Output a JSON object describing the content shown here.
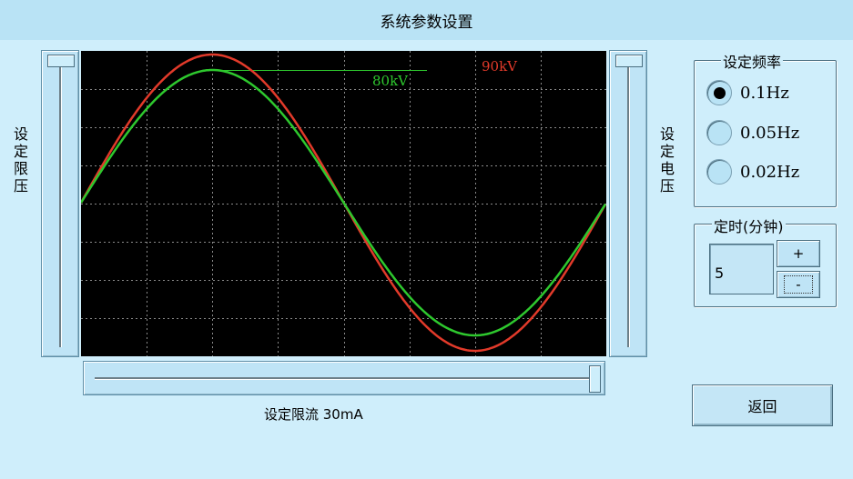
{
  "window": {
    "title": "系统参数设置"
  },
  "left_slider": {
    "label": "设定限压"
  },
  "right_slider": {
    "label": "设定电压"
  },
  "scope": {
    "red_label": "90kV",
    "green_label": "80kV",
    "colors": {
      "red": "#e23a2a",
      "green": "#2ec82e",
      "grid": "#8a8a8a",
      "background": "#000000"
    }
  },
  "current_slider": {
    "label": "设定限流 30mA"
  },
  "frequency": {
    "title": "设定频率",
    "options": [
      "0.1Hz",
      "0.05Hz",
      "0.02Hz"
    ],
    "selected": "0.1Hz"
  },
  "timer": {
    "title": "定时(分钟)",
    "value": "5",
    "plus_label": "+",
    "minus_label": "-"
  },
  "back_button": {
    "label": "返回"
  },
  "icons": [
    "radio-checked-icon",
    "radio-unchecked-icon"
  ]
}
